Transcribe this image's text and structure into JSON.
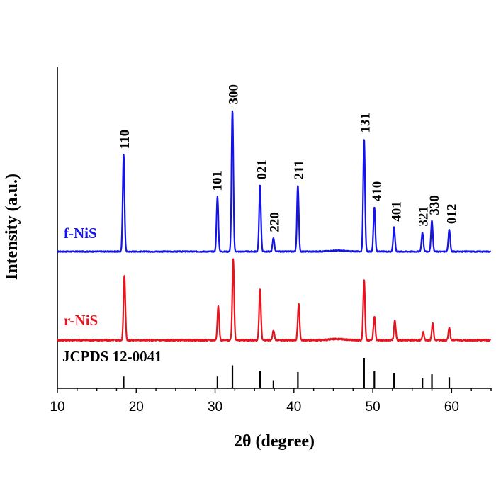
{
  "chart_data": {
    "type": "line",
    "xlabel": "2θ (degree)",
    "ylabel": "Intensity (a.u.)",
    "xlim": [
      10,
      65
    ],
    "x_ticks": [
      10,
      20,
      30,
      40,
      50,
      60
    ],
    "y_ticks_shown": false,
    "grid": false,
    "legend": "none",
    "series": [
      {
        "name": "f-NiS",
        "color": "#1414e6",
        "baseline": 0.52,
        "noise": 0.006,
        "peaks": [
          {
            "x": 18.4,
            "height": 1.2
          },
          {
            "x": 30.3,
            "height": 0.68
          },
          {
            "x": 32.2,
            "height": 1.75
          },
          {
            "x": 35.7,
            "height": 0.82
          },
          {
            "x": 37.4,
            "height": 0.17
          },
          {
            "x": 40.5,
            "height": 0.82
          },
          {
            "x": 48.9,
            "height": 1.4
          },
          {
            "x": 50.2,
            "height": 0.55
          },
          {
            "x": 52.7,
            "height": 0.3
          },
          {
            "x": 56.3,
            "height": 0.24
          },
          {
            "x": 57.5,
            "height": 0.38
          },
          {
            "x": 59.7,
            "height": 0.27
          }
        ]
      },
      {
        "name": "r-NiS",
        "color": "#e6141e",
        "baseline": -0.65,
        "noise": 0.01,
        "peaks": [
          {
            "x": 18.5,
            "height": 0.8
          },
          {
            "x": 30.4,
            "height": 0.42
          },
          {
            "x": 32.3,
            "height": 1.0
          },
          {
            "x": 35.7,
            "height": 0.64
          },
          {
            "x": 37.4,
            "height": 0.12
          },
          {
            "x": 40.6,
            "height": 0.45
          },
          {
            "x": 48.9,
            "height": 0.75
          },
          {
            "x": 50.2,
            "height": 0.29
          },
          {
            "x": 52.8,
            "height": 0.24
          },
          {
            "x": 56.4,
            "height": 0.1
          },
          {
            "x": 57.6,
            "height": 0.21
          },
          {
            "x": 59.7,
            "height": 0.15
          }
        ]
      }
    ],
    "reference": {
      "name": "JCPDS 12-0041",
      "color": "#000000",
      "lines": [
        {
          "x": 18.4,
          "height": 0.15
        },
        {
          "x": 30.3,
          "height": 0.15
        },
        {
          "x": 32.2,
          "height": 0.3
        },
        {
          "x": 35.7,
          "height": 0.22
        },
        {
          "x": 37.4,
          "height": 0.1
        },
        {
          "x": 40.5,
          "height": 0.21
        },
        {
          "x": 48.9,
          "height": 0.4
        },
        {
          "x": 50.2,
          "height": 0.22
        },
        {
          "x": 52.7,
          "height": 0.19
        },
        {
          "x": 56.3,
          "height": 0.13
        },
        {
          "x": 57.5,
          "height": 0.18
        },
        {
          "x": 59.7,
          "height": 0.14
        }
      ]
    },
    "peak_labels": [
      {
        "x": 18.4,
        "text": "110"
      },
      {
        "x": 30.3,
        "text": "101"
      },
      {
        "x": 32.2,
        "text": "300"
      },
      {
        "x": 35.7,
        "text": "021"
      },
      {
        "x": 37.4,
        "text": "220"
      },
      {
        "x": 40.5,
        "text": "211"
      },
      {
        "x": 48.9,
        "text": "131"
      },
      {
        "x": 50.2,
        "text": "410"
      },
      {
        "x": 52.7,
        "text": "401"
      },
      {
        "x": 56.3,
        "text": "321"
      },
      {
        "x": 57.5,
        "text": "330"
      },
      {
        "x": 59.7,
        "text": "012"
      }
    ]
  }
}
